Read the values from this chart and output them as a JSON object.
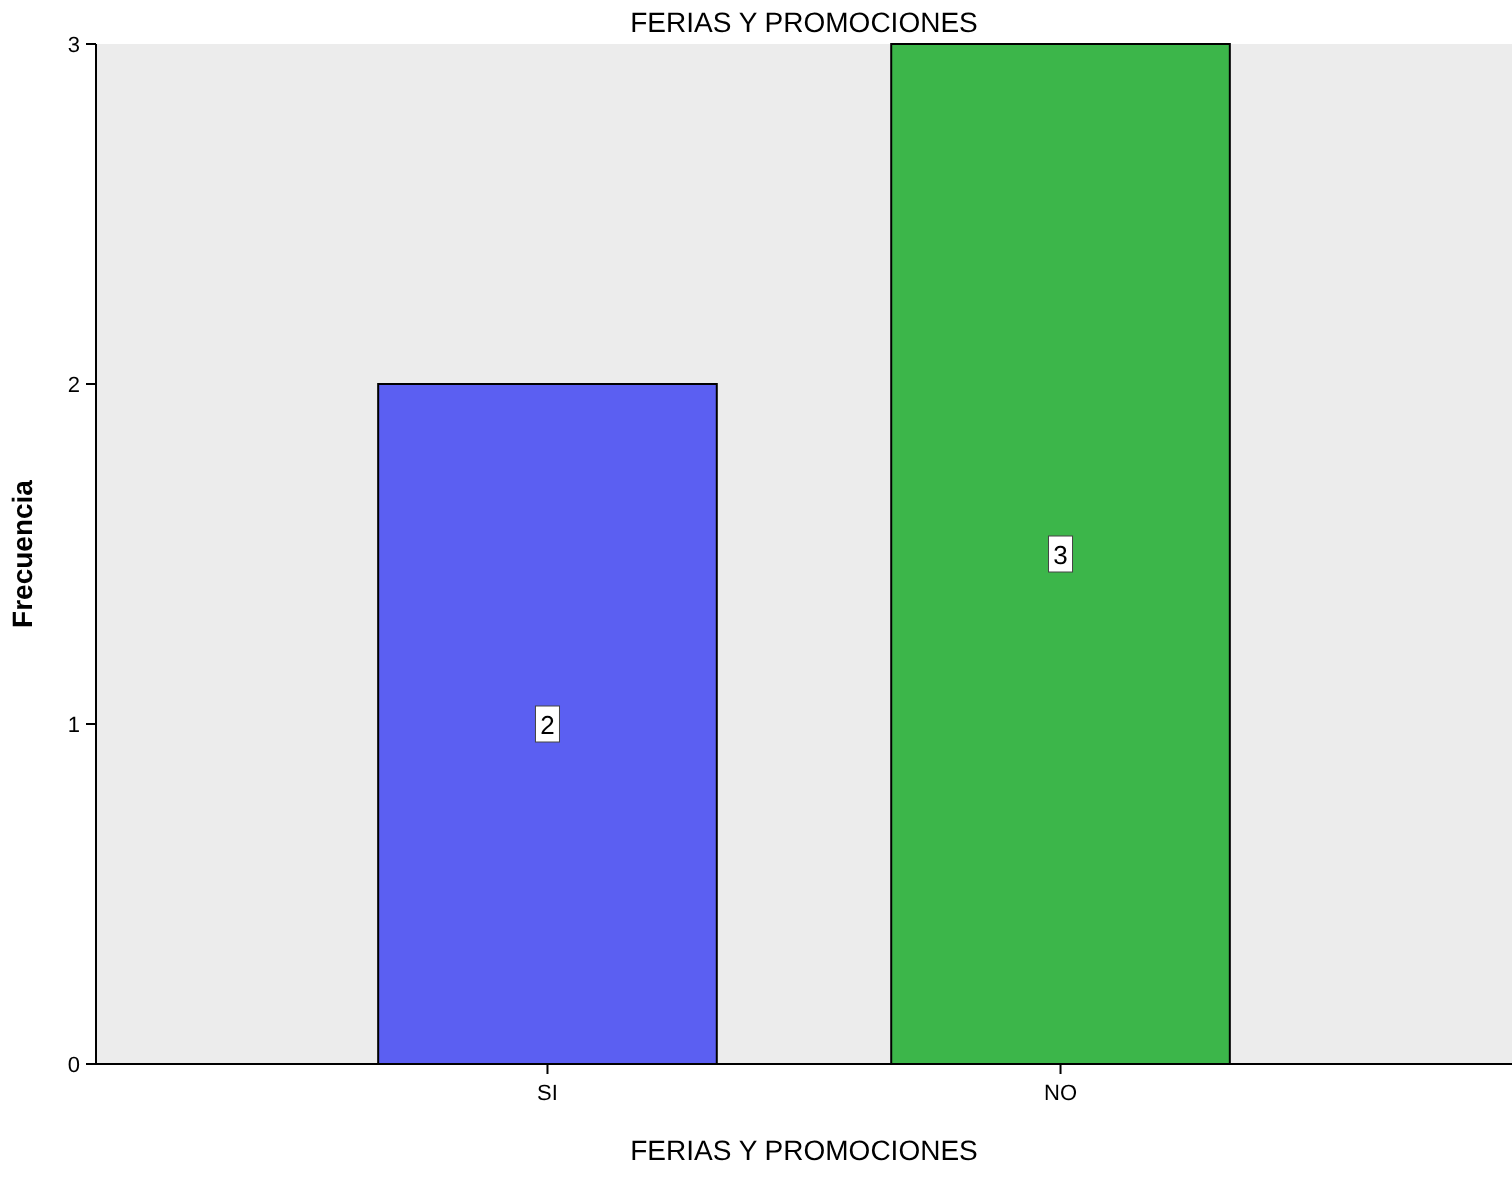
{
  "chart_data": {
    "type": "bar",
    "title": "FERIAS Y PROMOCIONES",
    "xlabel": "FERIAS Y PROMOCIONES",
    "ylabel": "Frecuencia",
    "categories": [
      "SI",
      "NO"
    ],
    "values": [
      2,
      3
    ],
    "colors": [
      "#5b5ff2",
      "#3cb64a"
    ],
    "ylim": [
      0,
      3
    ],
    "yticks": [
      0,
      1,
      2,
      3
    ],
    "data_labels": true
  }
}
